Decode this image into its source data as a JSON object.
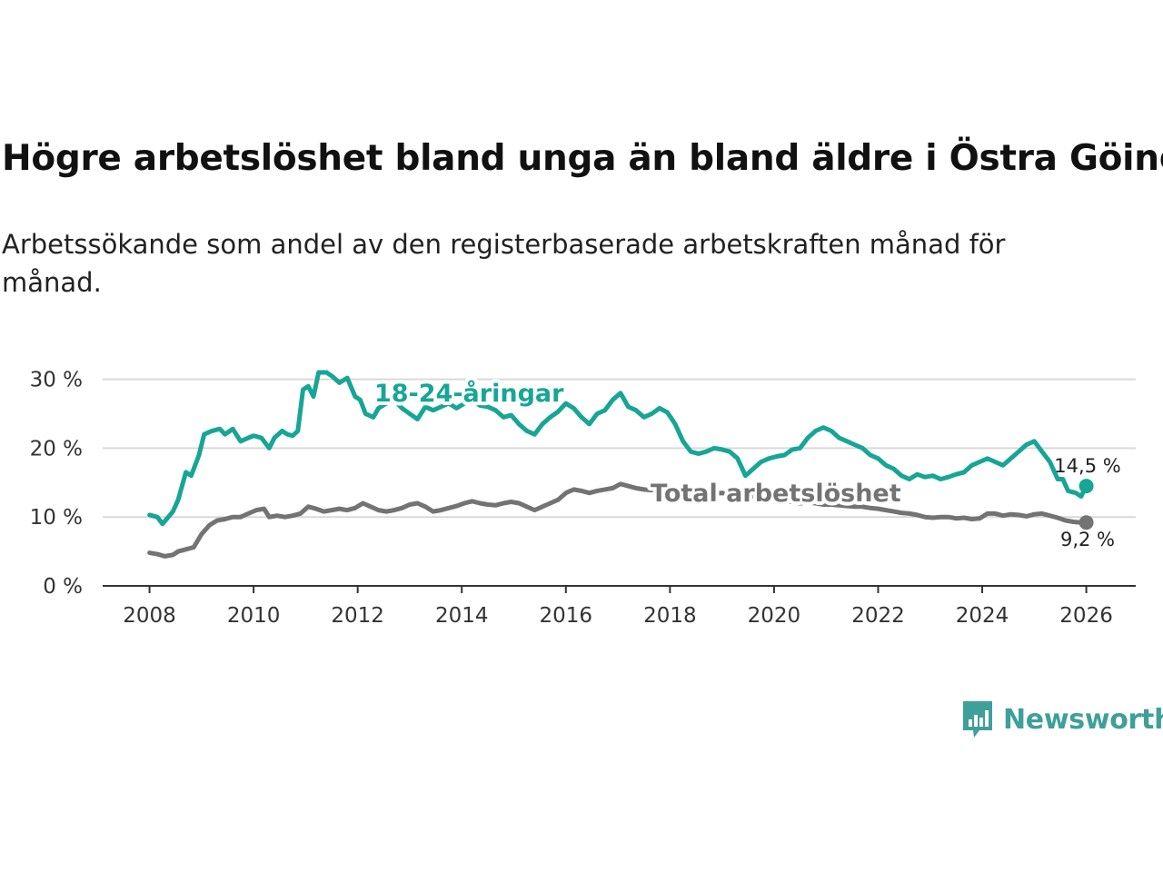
{
  "header": {
    "title": "Högre arbetslöshet bland unga än bland äldre i Östra Göinge",
    "subtitle": "Arbetssökande som andel av den registerbaserade arbetskraften månad för månad."
  },
  "brand": {
    "name": "Newsworthy",
    "color": "#3f9f99"
  },
  "chart_data": {
    "type": "line",
    "title": "Högre arbetslöshet bland unga än bland äldre i Östra Göinge",
    "xlabel": "",
    "ylabel": "",
    "xlim": [
      2007.1,
      2026.95
    ],
    "ylim": [
      0,
      31
    ],
    "x_ticks": [
      {
        "value": 2008,
        "label": "2008"
      },
      {
        "value": 2010,
        "label": "2010"
      },
      {
        "value": 2012,
        "label": "2012"
      },
      {
        "value": 2014,
        "label": "2014"
      },
      {
        "value": 2016,
        "label": "2016"
      },
      {
        "value": 2018,
        "label": "2018"
      },
      {
        "value": 2020,
        "label": "2020"
      },
      {
        "value": 2022,
        "label": "2022"
      },
      {
        "value": 2024,
        "label": "2024"
      },
      {
        "value": 2026,
        "label": "2026"
      }
    ],
    "y_ticks": [
      {
        "value": 0,
        "label": "0 %"
      },
      {
        "value": 10,
        "label": "10 %"
      },
      {
        "value": 20,
        "label": "20 %"
      },
      {
        "value": 30,
        "label": "30 %"
      }
    ],
    "grid": true,
    "series": [
      {
        "name": "18-24-åringar",
        "color": "#17a596",
        "end_label": "14,5 %",
        "x": [
          2008.0,
          2008.15,
          2008.25,
          2008.45,
          2008.55,
          2008.7,
          2008.8,
          2008.95,
          2009.05,
          2009.2,
          2009.35,
          2009.45,
          2009.6,
          2009.75,
          2009.9,
          2010.0,
          2010.15,
          2010.3,
          2010.4,
          2010.55,
          2010.65,
          2010.75,
          2010.85,
          2010.95,
          2011.05,
          2011.15,
          2011.25,
          2011.4,
          2011.5,
          2011.65,
          2011.8,
          2011.95,
          2012.05,
          2012.15,
          2012.3,
          2012.4,
          2012.55,
          2012.7,
          2012.85,
          2013.0,
          2013.15,
          2013.3,
          2013.45,
          2013.6,
          2013.75,
          2013.9,
          2014.05,
          2014.2,
          2014.35,
          2014.5,
          2014.65,
          2014.8,
          2014.95,
          2015.1,
          2015.25,
          2015.4,
          2015.55,
          2015.7,
          2015.85,
          2016.0,
          2016.15,
          2016.3,
          2016.45,
          2016.6,
          2016.75,
          2016.9,
          2017.05,
          2017.2,
          2017.35,
          2017.5,
          2017.65,
          2017.8,
          2017.95,
          2018.1,
          2018.25,
          2018.4,
          2018.55,
          2018.7,
          2018.85,
          2019.0,
          2019.15,
          2019.3,
          2019.45,
          2019.6,
          2019.75,
          2019.9,
          2020.05,
          2020.2,
          2020.35,
          2020.5,
          2020.65,
          2020.8,
          2020.95,
          2021.1,
          2021.25,
          2021.4,
          2021.55,
          2021.7,
          2021.85,
          2022.0,
          2022.15,
          2022.3,
          2022.45,
          2022.6,
          2022.75,
          2022.9,
          2023.05,
          2023.2,
          2023.35,
          2023.5,
          2023.65,
          2023.8,
          2023.95,
          2024.1,
          2024.25,
          2024.4,
          2024.55,
          2024.7,
          2024.85,
          2025.0,
          2025.15,
          2025.3,
          2025.45,
          2025.55,
          2025.65,
          2025.8,
          2025.9,
          2026.0
        ],
        "values": [
          10.3,
          10.0,
          9.0,
          10.8,
          12.5,
          16.5,
          16.0,
          19.0,
          22.0,
          22.5,
          22.8,
          22.0,
          22.8,
          21.0,
          21.5,
          21.8,
          21.5,
          20.0,
          21.5,
          22.5,
          22.0,
          21.8,
          22.5,
          28.5,
          29.0,
          27.5,
          31.0,
          31.0,
          30.5,
          29.5,
          30.2,
          27.5,
          27.0,
          25.0,
          24.5,
          25.8,
          26.5,
          27.0,
          25.8,
          25.0,
          24.2,
          26.0,
          25.5,
          26.0,
          26.5,
          25.8,
          26.5,
          27.0,
          26.2,
          26.0,
          25.5,
          24.5,
          24.8,
          23.5,
          22.5,
          22.0,
          23.5,
          24.5,
          25.3,
          26.5,
          25.8,
          24.5,
          23.5,
          25.0,
          25.5,
          27.0,
          28.0,
          26.0,
          25.5,
          24.5,
          25.0,
          25.8,
          25.2,
          23.5,
          21.0,
          19.5,
          19.2,
          19.5,
          20.0,
          19.8,
          19.5,
          18.5,
          16.0,
          17.0,
          18.0,
          18.5,
          18.8,
          19.0,
          19.8,
          20.0,
          21.5,
          22.5,
          23.0,
          22.5,
          21.5,
          21.0,
          20.5,
          20.0,
          19.0,
          18.5,
          17.5,
          17.0,
          16.0,
          15.5,
          16.2,
          15.8,
          16.0,
          15.5,
          15.8,
          16.2,
          16.5,
          17.5,
          18.0,
          18.5,
          18.0,
          17.5,
          18.5,
          19.5,
          20.5,
          21.0,
          19.5,
          18.0,
          15.5,
          15.5,
          13.8,
          13.5,
          13.0,
          14.5
        ]
      },
      {
        "name": "Total arbetslöshet",
        "color": "#737373",
        "end_label": "9,2 %",
        "x": [
          2008.0,
          2008.15,
          2008.3,
          2008.45,
          2008.55,
          2008.7,
          2008.85,
          2009.0,
          2009.15,
          2009.3,
          2009.45,
          2009.6,
          2009.75,
          2009.9,
          2010.05,
          2010.2,
          2010.3,
          2010.45,
          2010.6,
          2010.75,
          2010.9,
          2011.05,
          2011.2,
          2011.35,
          2011.5,
          2011.65,
          2011.8,
          2011.95,
          2012.1,
          2012.25,
          2012.4,
          2012.55,
          2012.7,
          2012.85,
          2013.0,
          2013.15,
          2013.3,
          2013.45,
          2013.6,
          2013.75,
          2013.9,
          2014.05,
          2014.2,
          2014.35,
          2014.5,
          2014.65,
          2014.8,
          2014.95,
          2015.1,
          2015.25,
          2015.4,
          2015.55,
          2015.7,
          2015.85,
          2016.0,
          2016.15,
          2016.3,
          2016.45,
          2016.6,
          2016.75,
          2016.9,
          2017.05,
          2017.2,
          2017.35,
          2017.5,
          2017.65,
          2017.8,
          2017.95,
          2018.1,
          2018.25,
          2018.4,
          2018.55,
          2018.7,
          2018.85,
          2019.0,
          2019.15,
          2019.3,
          2019.45,
          2019.6,
          2019.75,
          2019.9,
          2020.05,
          2020.2,
          2020.35,
          2020.5,
          2020.65,
          2020.8,
          2020.95,
          2021.1,
          2021.25,
          2021.4,
          2021.55,
          2021.7,
          2021.85,
          2022.0,
          2022.15,
          2022.3,
          2022.45,
          2022.6,
          2022.75,
          2022.9,
          2023.05,
          2023.2,
          2023.35,
          2023.5,
          2023.65,
          2023.8,
          2023.95,
          2024.1,
          2024.25,
          2024.4,
          2024.55,
          2024.7,
          2024.85,
          2025.0,
          2025.15,
          2025.3,
          2025.45,
          2025.6,
          2025.75,
          2025.9,
          2026.0
        ],
        "values": [
          4.8,
          4.6,
          4.3,
          4.5,
          5.0,
          5.3,
          5.6,
          7.5,
          8.8,
          9.5,
          9.7,
          10.0,
          10.0,
          10.5,
          11.0,
          11.2,
          10.0,
          10.2,
          10.0,
          10.2,
          10.5,
          11.5,
          11.2,
          10.8,
          11.0,
          11.2,
          11.0,
          11.3,
          12.0,
          11.5,
          11.0,
          10.8,
          11.0,
          11.3,
          11.8,
          12.0,
          11.5,
          10.8,
          11.0,
          11.3,
          11.6,
          12.0,
          12.3,
          12.0,
          11.8,
          11.7,
          12.0,
          12.2,
          12.0,
          11.5,
          11.0,
          11.5,
          12.0,
          12.5,
          13.5,
          14.0,
          13.8,
          13.5,
          13.8,
          14.0,
          14.2,
          14.8,
          14.5,
          14.2,
          14.0,
          13.9,
          14.0,
          13.8,
          13.7,
          13.6,
          13.5,
          13.5,
          13.4,
          13.4,
          13.5,
          13.3,
          13.2,
          13.2,
          13.0,
          12.8,
          12.9,
          12.5,
          12.3,
          12.2,
          12.0,
          12.1,
          12.0,
          11.8,
          11.8,
          11.7,
          11.6,
          11.5,
          11.5,
          11.3,
          11.2,
          11.0,
          10.8,
          10.6,
          10.5,
          10.3,
          10.0,
          9.9,
          10.0,
          10.0,
          9.8,
          9.9,
          9.7,
          9.8,
          10.5,
          10.5,
          10.2,
          10.4,
          10.3,
          10.1,
          10.4,
          10.5,
          10.2,
          9.9,
          9.5,
          9.3,
          9.2,
          9.2
        ]
      }
    ]
  }
}
